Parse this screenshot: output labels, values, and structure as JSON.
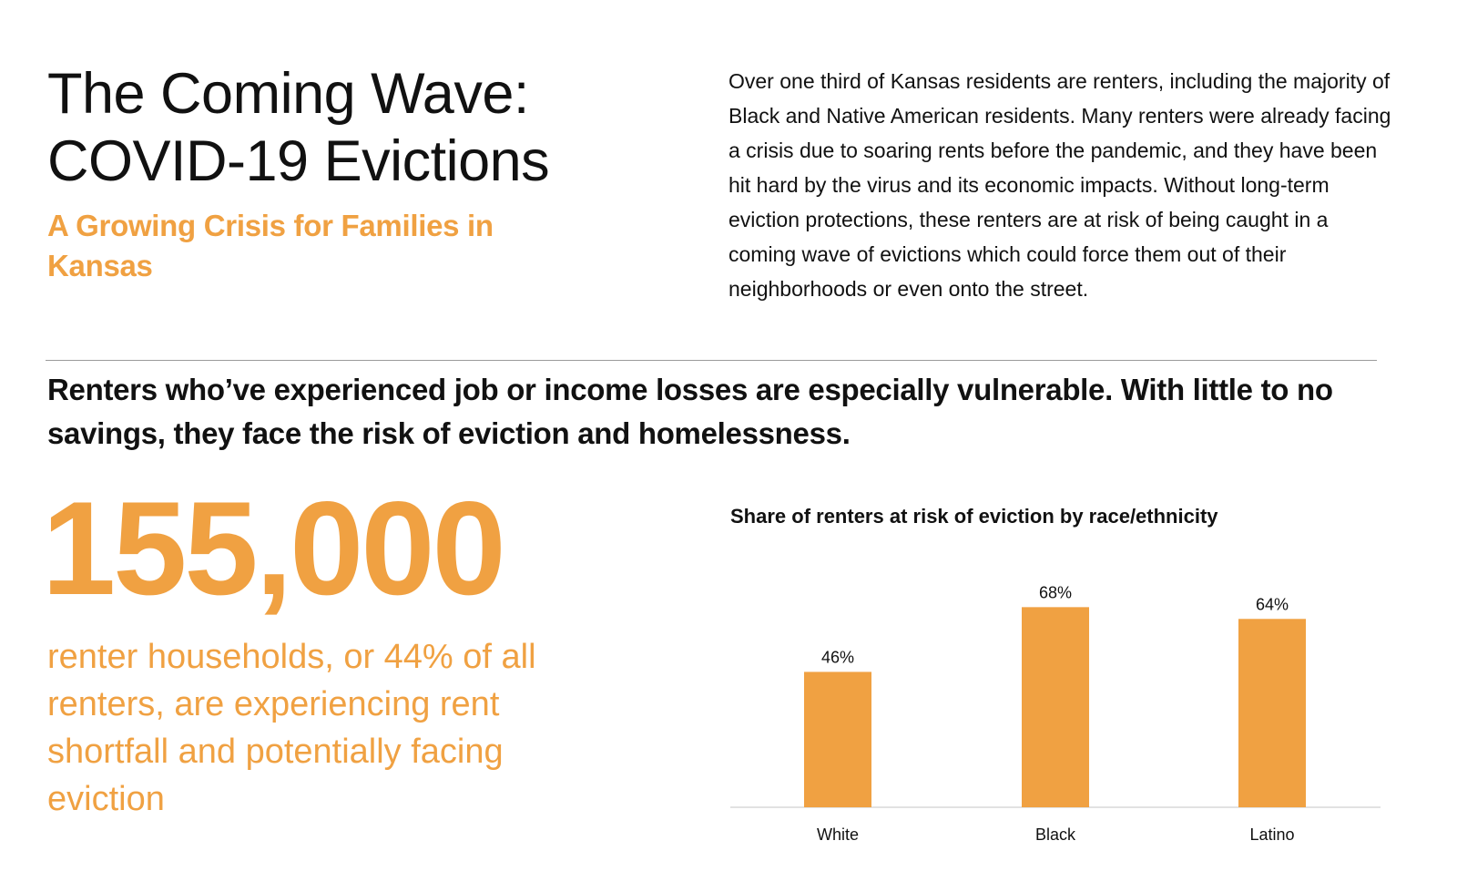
{
  "header": {
    "title_line1": "The Coming Wave:",
    "title_line2": "COVID-19 Evictions",
    "subtitle": "A Growing Crisis for Families in Kansas"
  },
  "intro_text": "Over one third of Kansas residents are renters, including the majority of Black and Native American residents. Many renters were already facing a crisis due to soaring rents before the pandemic, and they have been hit hard by the virus and its economic impacts. Without long-term eviction protections, these renters are at risk of being caught in a coming wave of evictions which could force them out of their neighborhoods or even onto the street.",
  "headline": "Renters who’ve experienced job or income losses are especially vulnerable. With little to no savings, they face the risk of eviction and homelessness.",
  "stat": {
    "number": "155,000",
    "description": "renter households, or 44% of all renters, are experiencing rent shortfall and potentially facing eviction"
  },
  "colors": {
    "accent": "#f0a142",
    "text": "#111111",
    "divider": "#9a9a9a",
    "axis": "#d9d9d9"
  },
  "chart_data": {
    "type": "bar",
    "title": "Share of renters at risk of eviction by race/ethnicity",
    "categories": [
      "White",
      "Black",
      "Latino"
    ],
    "values": [
      46,
      68,
      64
    ],
    "value_labels": [
      "46%",
      "68%",
      "64%"
    ],
    "xlabel": "",
    "ylabel": "",
    "ylim": [
      0,
      100
    ],
    "grid": false,
    "legend": "none"
  }
}
